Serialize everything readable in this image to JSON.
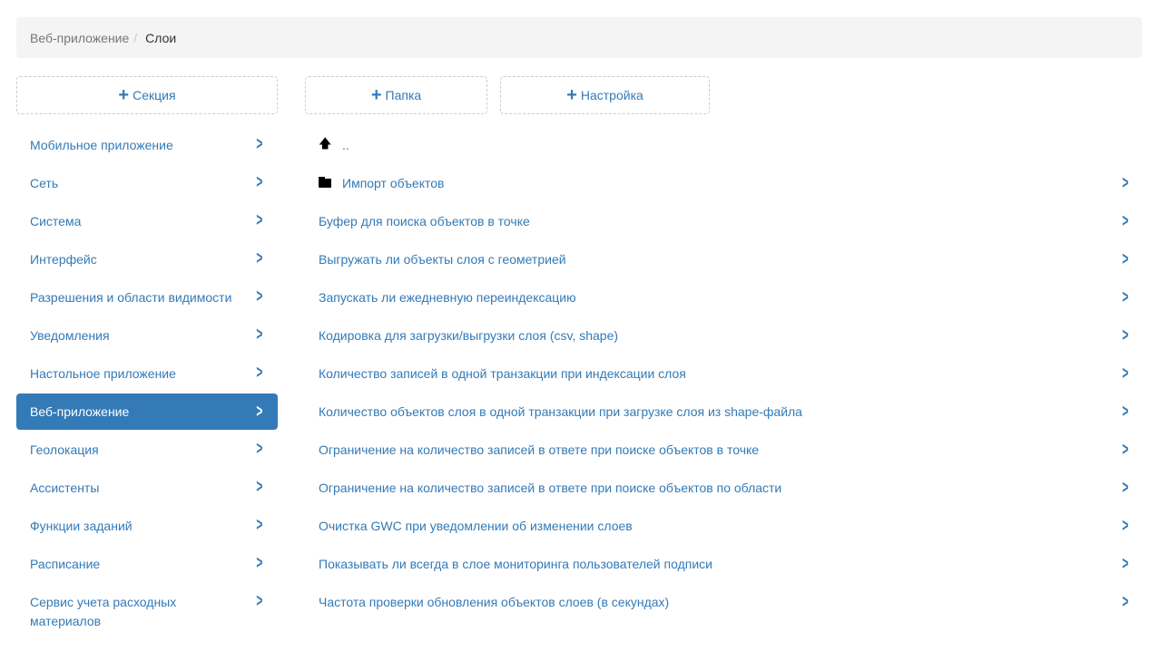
{
  "breadcrumb": {
    "parent": "Веб-приложение",
    "separator": "/",
    "current": "Слои"
  },
  "buttons": {
    "section": "Секция",
    "folder": "Папка",
    "setting": "Настройка"
  },
  "sidebar": {
    "items": [
      {
        "label": "Мобильное приложение"
      },
      {
        "label": "Сеть"
      },
      {
        "label": "Система"
      },
      {
        "label": "Интерфейс"
      },
      {
        "label": "Разрешения и области видимости"
      },
      {
        "label": "Уведомления"
      },
      {
        "label": "Настольное приложение"
      },
      {
        "label": "Веб-приложение",
        "active": true
      },
      {
        "label": "Геолокация"
      },
      {
        "label": "Ассистенты"
      },
      {
        "label": "Функции заданий"
      },
      {
        "label": "Расписание"
      },
      {
        "label": "Сервис учета расходных материалов"
      }
    ]
  },
  "main": {
    "up_label": "..",
    "folders": [
      {
        "label": "Импорт объектов"
      }
    ],
    "settings": [
      "Буфер для поиска объектов в точке",
      "Выгружать ли объекты слоя с геометрией",
      "Запускать ли ежедневную переиндексацию",
      "Кодировка для загрузки/выгрузки слоя (csv, shape)",
      "Количество записей в одной транзакции при индексации слоя",
      "Количество объектов слоя в одной транзакции при загрузке слоя из shape-файла",
      "Ограничение на количество записей в ответе при поиске объектов в точке",
      "Ограничение на количество записей в ответе при поиске объектов по области",
      "Очистка GWC при уведомлении об изменении слоев",
      "Показывать ли всегда в слое мониторинга пользователей подписи",
      "Частота проверки обновления объектов слоев (в секундах)"
    ]
  },
  "colors": {
    "accent": "#337ab7",
    "breadcrumb_bg": "#f4f4f4"
  }
}
